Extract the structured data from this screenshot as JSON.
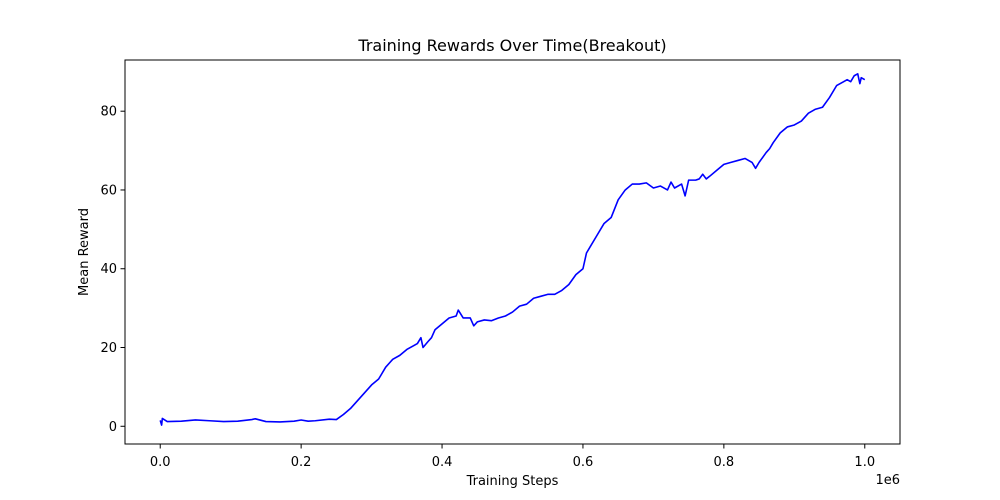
{
  "chart_data": {
    "type": "line",
    "title": "Training Rewards Over Time(Breakout)",
    "xlabel": "Training Steps",
    "ylabel": "Mean Reward",
    "x_offset_label": "1e6",
    "xlim": [
      -0.05,
      1.05
    ],
    "ylim": [
      -4.5,
      93
    ],
    "x_ticks": [
      0.0,
      0.2,
      0.4,
      0.6,
      0.8,
      1.0
    ],
    "x_tick_labels": [
      "0.0",
      "0.2",
      "0.4",
      "0.6",
      "0.8",
      "1.0"
    ],
    "y_ticks": [
      0,
      20,
      40,
      60,
      80
    ],
    "y_tick_labels": [
      "0",
      "20",
      "40",
      "60",
      "80"
    ],
    "grid": false,
    "series": [
      {
        "color": "#0000ff",
        "x": [
          0.0,
          0.002,
          0.003,
          0.01,
          0.03,
          0.05,
          0.07,
          0.09,
          0.11,
          0.13,
          0.135,
          0.15,
          0.17,
          0.19,
          0.2,
          0.21,
          0.22,
          0.24,
          0.25,
          0.26,
          0.27,
          0.28,
          0.29,
          0.3,
          0.31,
          0.32,
          0.325,
          0.33,
          0.34,
          0.35,
          0.36,
          0.365,
          0.37,
          0.373,
          0.38,
          0.385,
          0.39,
          0.4,
          0.41,
          0.42,
          0.423,
          0.43,
          0.44,
          0.445,
          0.45,
          0.46,
          0.47,
          0.48,
          0.49,
          0.5,
          0.51,
          0.52,
          0.53,
          0.54,
          0.55,
          0.56,
          0.57,
          0.58,
          0.59,
          0.6,
          0.605,
          0.61,
          0.62,
          0.63,
          0.64,
          0.65,
          0.66,
          0.67,
          0.68,
          0.69,
          0.7,
          0.71,
          0.72,
          0.725,
          0.73,
          0.74,
          0.745,
          0.75,
          0.76,
          0.765,
          0.77,
          0.775,
          0.78,
          0.79,
          0.8,
          0.81,
          0.82,
          0.83,
          0.84,
          0.845,
          0.85,
          0.86,
          0.865,
          0.87,
          0.88,
          0.89,
          0.9,
          0.91,
          0.92,
          0.93,
          0.94,
          0.95,
          0.96,
          0.97,
          0.975,
          0.98,
          0.985,
          0.99,
          0.993,
          0.995,
          1.0
        ],
        "y": [
          1.5,
          0.3,
          2.0,
          1.2,
          1.3,
          1.6,
          1.4,
          1.2,
          1.3,
          1.7,
          1.9,
          1.2,
          1.1,
          1.3,
          1.6,
          1.3,
          1.4,
          1.8,
          1.7,
          3.0,
          4.5,
          6.5,
          8.5,
          10.5,
          12.0,
          15.0,
          16.0,
          17.0,
          18.0,
          19.5,
          20.5,
          21.0,
          22.5,
          20.0,
          21.5,
          22.5,
          24.5,
          26.0,
          27.5,
          28.0,
          29.5,
          27.5,
          27.5,
          25.5,
          26.5,
          27.0,
          26.8,
          27.5,
          28.0,
          29.0,
          30.5,
          31.0,
          32.5,
          33.0,
          33.5,
          33.5,
          34.5,
          36.0,
          38.5,
          40.0,
          44.0,
          45.5,
          48.5,
          51.5,
          53.0,
          57.5,
          60.0,
          61.5,
          61.5,
          61.8,
          60.5,
          61.0,
          60.0,
          62.0,
          60.5,
          61.5,
          58.5,
          62.5,
          62.5,
          62.8,
          64.0,
          62.8,
          63.5,
          65.0,
          66.5,
          67.0,
          67.5,
          68.0,
          67.0,
          65.5,
          67.0,
          69.5,
          70.5,
          72.0,
          74.5,
          76.0,
          76.5,
          77.5,
          79.5,
          80.5,
          81.0,
          83.5,
          86.5,
          87.5,
          88.0,
          87.5,
          89.0,
          89.5,
          87.0,
          88.5,
          88.0
        ]
      }
    ]
  }
}
